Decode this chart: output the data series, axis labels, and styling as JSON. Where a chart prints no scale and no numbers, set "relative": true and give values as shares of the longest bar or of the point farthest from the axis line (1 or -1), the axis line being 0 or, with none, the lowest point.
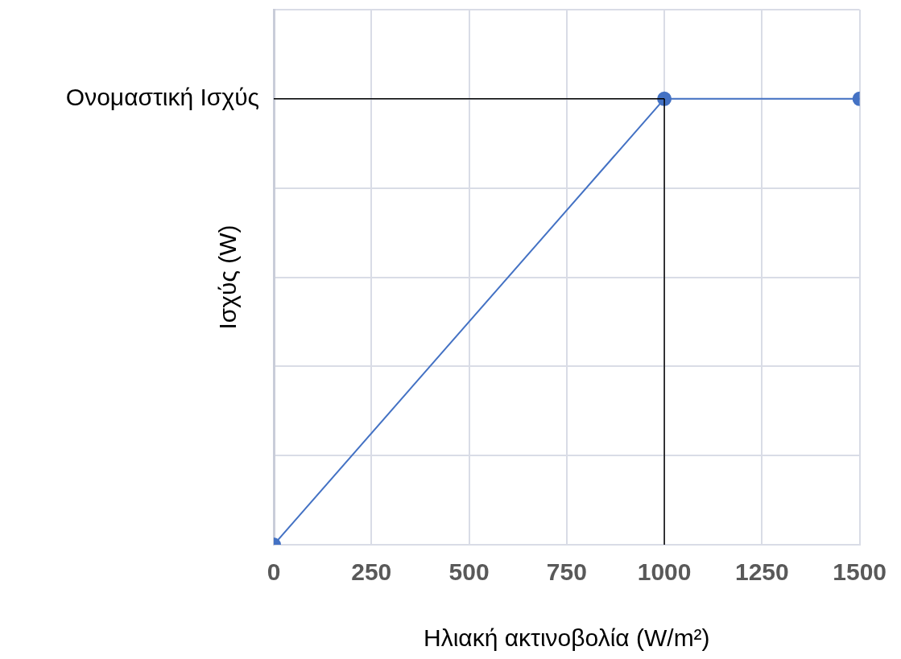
{
  "chart_data": {
    "type": "line",
    "xlabel": "Ηλιακή ακτινοβολία (W/m²)",
    "ylabel": "Ισχύς (W)",
    "relative": true,
    "x": [
      0,
      1000,
      1500
    ],
    "series": [
      {
        "color": "#4472c4",
        "values": [
          0,
          1,
          1
        ]
      }
    ],
    "xlim": [
      0,
      1500
    ],
    "xticks": [
      0,
      250,
      500,
      750,
      1000,
      1250,
      1500
    ],
    "ref_lines": [
      {
        "axis": "y",
        "value": 1,
        "label": "Ονομαστική Ισχύς",
        "color": "#000000"
      },
      {
        "axis": "x",
        "value": 1000,
        "color": "#000000"
      }
    ],
    "grid": true,
    "marker": "circle",
    "line_style": "solid"
  }
}
